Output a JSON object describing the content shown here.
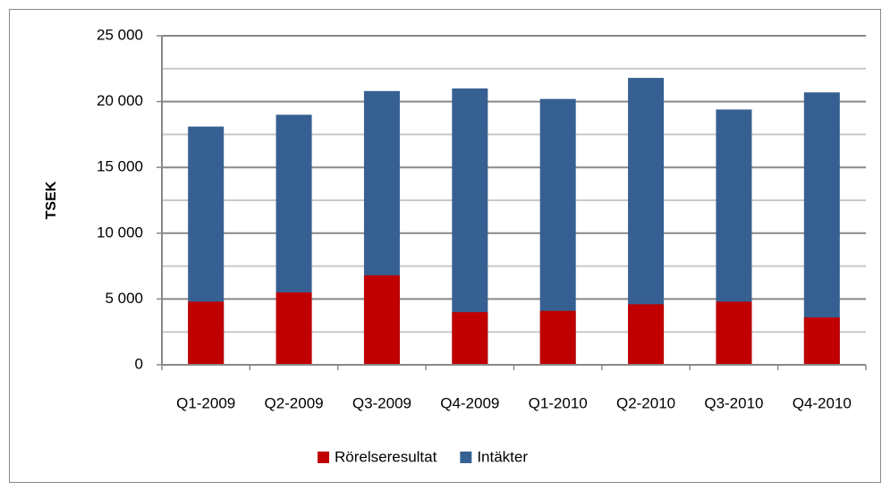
{
  "chart_data": {
    "type": "bar",
    "overlap": true,
    "y_label": "TSEK",
    "categories": [
      "Q1-2009",
      "Q2-2009",
      "Q3-2009",
      "Q4-2009",
      "Q1-2010",
      "Q2-2010",
      "Q3-2010",
      "Q4-2010"
    ],
    "series": [
      {
        "name": "Rörelseresultat",
        "color": "#c00000",
        "values": [
          4800,
          5500,
          6800,
          4000,
          4100,
          4600,
          4800,
          3600
        ]
      },
      {
        "name": "Intäkter",
        "color": "#366092",
        "values": [
          18100,
          19000,
          20800,
          21000,
          20200,
          21800,
          19400,
          20700
        ]
      }
    ],
    "ylim": [
      0,
      25000
    ],
    "yticks": [
      0,
      {
        "value": 5000,
        "label": "5 000"
      },
      {
        "value": 10000,
        "label": "10 000"
      },
      {
        "value": 15000,
        "label": "15 000"
      },
      {
        "value": 20000,
        "label": "20 000"
      },
      {
        "value": 25000,
        "label": "25 000"
      }
    ],
    "minor_yticks": [
      2500,
      7500,
      12500,
      17500,
      22500
    ],
    "grid": true,
    "legend": "bottom"
  }
}
